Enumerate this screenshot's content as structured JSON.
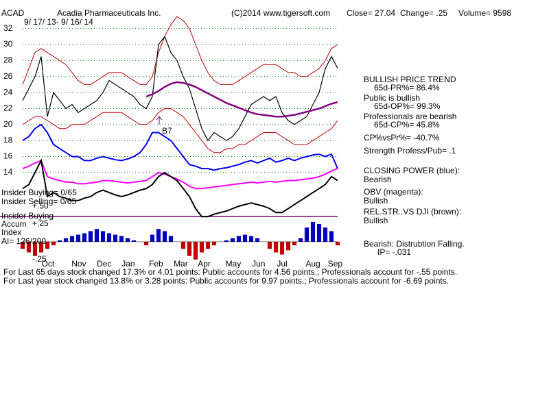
{
  "header": {
    "symbol": "ACAD",
    "company": "Acadia Pharmaceuticals Inc.",
    "source": "(C)2014 www.tigersoft.com",
    "close": "Close= 27.04",
    "change": "Change= .25",
    "volume": "Volume= 9598",
    "range": "9/ 17/ 13- 9/ 16/ 14"
  },
  "notes": [
    "BULLISH PRICE TREND",
    "65d-PR%= 86.4%",
    "Public is bullish",
    "65d-OP%= 99.3%",
    "Professionals are bearish",
    "65d-CP%= 45.8%",
    "CP%vsPr%= -40.7%",
    "Strength Profess/Pub= .1",
    "CLOSING POWER (blue):",
    "Bearish",
    "OBV (magenta):",
    "Bullish",
    "REL.STR..VS DJI (brown):",
    "Bullish",
    "Bearish: Distrubtion Falling.",
    "IP= -.031"
  ],
  "left_labels": [
    "Insider Buying= 0/65",
    "Insider Selling= 0/65",
    "Insider Buying",
    "Accum",
    "Index",
    "AI= 126/200"
  ],
  "annotation": "B7",
  "summary": [
    "For Last 65 days stock changed  17.3% or  4.01 points:  Public accounts for  4.56 points.;  Professionals account for -.55 points.",
    "For Last year stock changed  13.8% or  3.28 points:  Public accounts for  9.97 points.;  Professionals account for -6.69 points."
  ],
  "chart_data": [
    {
      "type": "line",
      "xlim": [
        0,
        51
      ],
      "ylim": [
        8,
        33
      ],
      "yticks": [
        14,
        16,
        18,
        20,
        22,
        24,
        26,
        28,
        30,
        32
      ],
      "grid": true,
      "xticks": [
        {
          "value": 4.1,
          "label": "Oct"
        },
        {
          "value": 9.1,
          "label": "Nov"
        },
        {
          "value": 13.2,
          "label": "Dec"
        },
        {
          "value": 17.1,
          "label": "Jan"
        },
        {
          "value": 21.6,
          "label": "Feb"
        },
        {
          "value": 25.6,
          "label": "Mar"
        },
        {
          "value": 29.4,
          "label": "Apr"
        },
        {
          "value": 34.1,
          "label": "May"
        },
        {
          "value": 38.2,
          "label": "Jun"
        },
        {
          "value": 42,
          "label": "Jul"
        },
        {
          "value": 47,
          "label": "Aug"
        },
        {
          "value": 50.6,
          "label": "Sep"
        }
      ],
      "series": [
        {
          "color": "#c00000",
          "width": 1,
          "values": [
            25,
            27,
            29,
            29.5,
            29,
            28.5,
            28,
            27.5,
            26.5,
            25.5,
            25,
            25,
            25.5,
            26,
            26.5,
            26.5,
            26.5,
            26,
            25.5,
            25,
            25,
            26,
            29,
            31,
            32.5,
            33.5,
            33,
            32,
            30,
            28,
            26.5,
            25.5,
            25,
            25,
            25,
            25.5,
            26,
            26.5,
            27,
            27.5,
            27.5,
            27.5,
            27,
            26.5,
            26.5,
            26,
            26,
            26.5,
            27,
            28,
            29.5,
            30
          ]
        },
        {
          "color": "#c00000",
          "width": 1,
          "values": [
            20,
            20.5,
            21,
            21,
            20.5,
            20,
            19.5,
            19.5,
            20,
            20,
            20,
            20.5,
            21,
            21.5,
            21.5,
            21.5,
            21.5,
            21,
            20.5,
            20,
            20,
            20.5,
            21.5,
            22,
            22,
            21.5,
            21,
            20,
            19,
            18,
            17,
            16.5,
            16.5,
            17,
            17,
            17.5,
            17.5,
            18,
            18.5,
            19,
            19,
            19,
            18.5,
            18,
            17.5,
            17.5,
            17.5,
            18,
            18.5,
            19,
            19.5,
            20.5
          ]
        },
        {
          "color": "#000000",
          "width": 1.2,
          "values": [
            23,
            24.5,
            26,
            28.5,
            21,
            24,
            23,
            22,
            22.5,
            21.5,
            22,
            22.5,
            23,
            24,
            25.5,
            25,
            24.5,
            24,
            23.5,
            22.5,
            22,
            23.5,
            30,
            31,
            29,
            28,
            26,
            24.5,
            22,
            19.5,
            18,
            19,
            18.5,
            18,
            18.5,
            19.5,
            21,
            22.5,
            23,
            23.5,
            23,
            23.5,
            21.5,
            20.5,
            20,
            20.5,
            21,
            22.5,
            24,
            27,
            28.5,
            27.04
          ]
        },
        {
          "color": "#800080",
          "width": 2.5,
          "values": [
            null,
            null,
            null,
            null,
            null,
            null,
            null,
            null,
            null,
            null,
            null,
            null,
            null,
            null,
            null,
            null,
            null,
            null,
            null,
            null,
            23.5,
            23.8,
            24.2,
            24.7,
            25.1,
            25.3,
            25.2,
            25,
            24.7,
            24.3,
            23.9,
            23.5,
            23.1,
            22.7,
            22.4,
            22.1,
            21.8,
            21.5,
            21.3,
            21.2,
            21.1,
            21,
            21,
            21.1,
            21.2,
            21.4,
            21.6,
            21.8,
            22,
            22.3,
            22.6,
            22.8
          ]
        },
        {
          "color": "#0000ff",
          "width": 2,
          "values": [
            18,
            18.5,
            19.5,
            20,
            19,
            17.5,
            17,
            16.5,
            16,
            16,
            15.5,
            15.5,
            15.8,
            16,
            15.8,
            15.6,
            15.5,
            15.7,
            16,
            16.5,
            17.5,
            19,
            19,
            18.5,
            18,
            17,
            16,
            15,
            14.8,
            14.5,
            14.5,
            14.3,
            14.5,
            14.6,
            14.8,
            15,
            15.3,
            15.5,
            15.2,
            15.5,
            15.8,
            15.3,
            15.5,
            15.8,
            15.5,
            15.8,
            16,
            16.2,
            16.3,
            16,
            16.3,
            14.5
          ]
        },
        {
          "color": "#ff00ff",
          "width": 2,
          "values": [
            14.5,
            14.8,
            15.2,
            15.5,
            13.5,
            13.2,
            13,
            12.8,
            12.8,
            12.6,
            12.6,
            12.7,
            12.8,
            13,
            13,
            12.9,
            12.8,
            12.7,
            12.8,
            12.9,
            13,
            13.5,
            14,
            13.8,
            13.5,
            13.2,
            12.8,
            12.3,
            12,
            12,
            12.1,
            12.2,
            12.3,
            12.4,
            12.5,
            12.6,
            12.7,
            12.8,
            12.7,
            12.8,
            12.9,
            12.8,
            12.9,
            13,
            13,
            13.1,
            13.2,
            13.3,
            13.5,
            13.8,
            14.2,
            14.5
          ]
        },
        {
          "color": "#000000",
          "width": 2,
          "values": [
            12,
            12.5,
            14,
            15.5,
            11,
            11.5,
            11,
            10.8,
            10.5,
            10.5,
            10.8,
            11,
            11.5,
            11.8,
            11.5,
            11.2,
            11,
            11.2,
            11.5,
            11.8,
            12,
            12.5,
            13.5,
            14,
            13.5,
            13,
            12,
            11,
            9.5,
            8.5,
            8.5,
            8.8,
            9,
            9.2,
            9.5,
            9.8,
            10,
            10.2,
            10,
            9.8,
            9.5,
            9,
            9,
            9.5,
            10,
            10.5,
            11,
            11.5,
            12,
            12.5,
            13.5,
            13
          ]
        }
      ]
    },
    {
      "type": "bar",
      "xlim": [
        0,
        51
      ],
      "ylim": [
        -0.3,
        0.55
      ],
      "color_positive": "#0000c0",
      "color_negative": "#c00000",
      "yticks": [
        {
          "value": 0.5,
          "label": "+.50"
        },
        {
          "value": 0.25,
          "label": "+.25"
        },
        {
          "value": -0.25,
          "label": "-.25"
        }
      ],
      "values": [
        -0.1,
        -0.15,
        -0.2,
        -0.15,
        -0.1,
        -0.05,
        0.02,
        0.05,
        0.08,
        0.1,
        0.12,
        0.15,
        0.18,
        0.15,
        0.12,
        0.1,
        0.08,
        0.05,
        0.02,
        0,
        -0.05,
        0.1,
        0.18,
        0.15,
        0.08,
        0,
        -0.1,
        -0.2,
        -0.25,
        -0.15,
        -0.1,
        -0.05,
        0,
        0.02,
        0.05,
        0.08,
        0.1,
        0.08,
        0.05,
        0,
        -0.1,
        -0.15,
        -0.18,
        -0.12,
        -0.05,
        0.05,
        0.2,
        0.28,
        0.25,
        0.2,
        0.15,
        -0.05
      ]
    }
  ]
}
